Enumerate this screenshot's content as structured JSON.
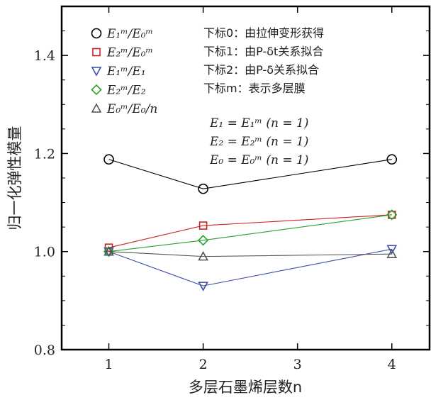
{
  "chart_data": {
    "type": "line",
    "xlabel": "多层石墨烯层数n",
    "ylabel": "归一化弹性模量",
    "xlim": [
      0.5,
      4.4
    ],
    "ylim": [
      0.8,
      1.5
    ],
    "x_ticks": [
      1,
      2,
      3,
      4
    ],
    "y_ticks": [
      0.8,
      1.0,
      1.2,
      1.4
    ],
    "x_tick_labels": [
      "1",
      "2",
      "3",
      "4"
    ],
    "y_tick_labels": [
      "0.8",
      "1.0",
      "1.2",
      "1.4"
    ],
    "grid": false,
    "legend_position": "top-left",
    "x": [
      1,
      2,
      4
    ],
    "series": [
      {
        "name": "E₁ᵐ/E₀ᵐ",
        "marker": "circle",
        "color": "#000000",
        "values": [
          1.188,
          1.128,
          1.188
        ]
      },
      {
        "name": "E₂ᵐ/E₀ᵐ",
        "marker": "square",
        "color": "#cc2222",
        "values": [
          1.008,
          1.053,
          1.075
        ]
      },
      {
        "name": "E₁ᵐ/E₁",
        "marker": "triangle-down",
        "color": "#3b4ca8",
        "values": [
          1.0,
          0.93,
          1.005
        ]
      },
      {
        "name": "E₂ᵐ/E₂",
        "marker": "diamond",
        "color": "#2ca02c",
        "values": [
          1.0,
          1.023,
          1.075
        ]
      },
      {
        "name": "E₀ᵐ/E₀/n",
        "marker": "triangle-up",
        "color": "#555555",
        "values": [
          1.0,
          0.99,
          0.995
        ]
      }
    ],
    "notes": [
      "下标0：由拉伸变形获得",
      "下标1：由P-δt关系拟合",
      "下标2：由P-δ关系拟合",
      "下标m：表示多层膜"
    ],
    "equations": [
      "E₁ = E₁ᵐ (n = 1)",
      "E₂ = E₂ᵐ (n = 1)",
      "E₀ = E₀ᵐ (n = 1)"
    ]
  }
}
